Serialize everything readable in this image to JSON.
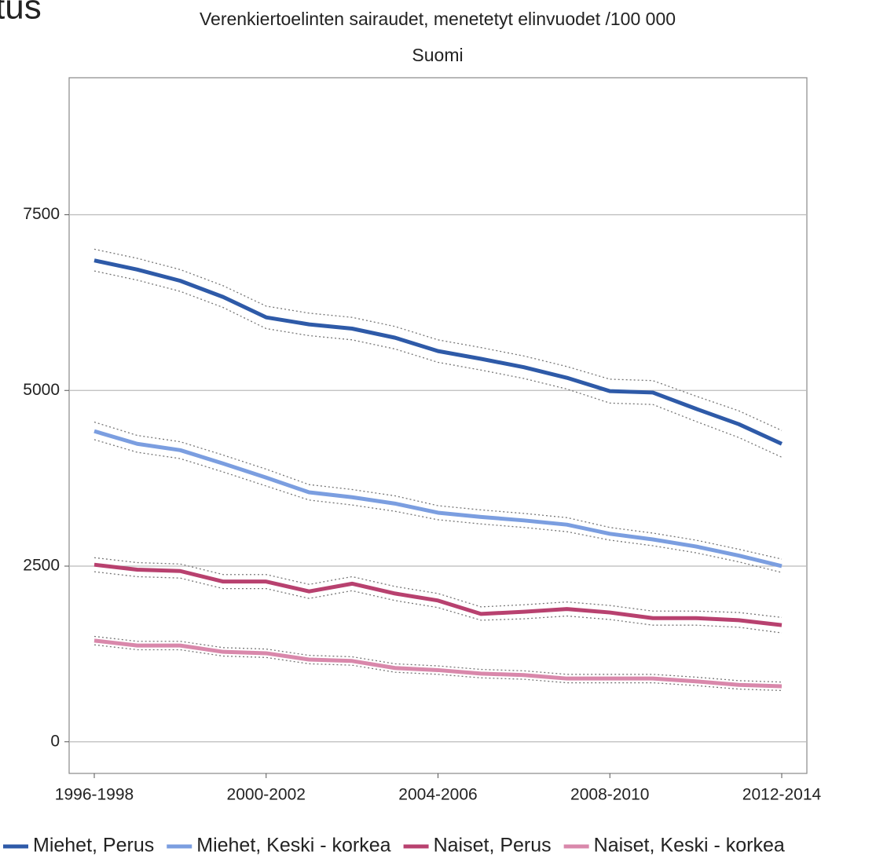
{
  "fragment_text": "tus",
  "chart_data": {
    "type": "line",
    "title": "Verenkiertoelinten sairaudet, menetetyt elinvuodet /100 000",
    "subtitle": "Suomi",
    "categories": [
      "1996-1998",
      null,
      null,
      null,
      "2000-2002",
      null,
      null,
      null,
      "2004-2006",
      null,
      null,
      null,
      "2008-2010",
      null,
      null,
      null,
      "2012-2014"
    ],
    "ylim": [
      -450,
      9450
    ],
    "yticks": [
      0,
      2500,
      5000,
      7500
    ],
    "grid": true,
    "legend": "bottom",
    "series": [
      {
        "name": "Miehet, Perus",
        "color": "#2e5aa8",
        "values": [
          6850,
          6720,
          6560,
          6330,
          6040,
          5940,
          5880,
          5750,
          5560,
          5450,
          5330,
          5180,
          4990,
          4970,
          4740,
          4520,
          4240
        ],
        "lower": [
          6700,
          6570,
          6410,
          6180,
          5880,
          5780,
          5720,
          5590,
          5400,
          5290,
          5170,
          5020,
          4820,
          4800,
          4560,
          4330,
          4050
        ],
        "upper": [
          7010,
          6880,
          6720,
          6490,
          6200,
          6100,
          6040,
          5910,
          5720,
          5610,
          5490,
          5340,
          5160,
          5140,
          4920,
          4710,
          4430
        ]
      },
      {
        "name": "Miehet, Keski - korkea",
        "color": "#7b9ee0",
        "values": [
          4420,
          4240,
          4150,
          3960,
          3760,
          3550,
          3480,
          3390,
          3260,
          3200,
          3150,
          3090,
          2960,
          2880,
          2780,
          2650,
          2500
        ],
        "lower": [
          4300,
          4120,
          4030,
          3840,
          3640,
          3440,
          3370,
          3280,
          3160,
          3100,
          3050,
          2990,
          2870,
          2790,
          2690,
          2560,
          2410
        ],
        "upper": [
          4550,
          4360,
          4270,
          4080,
          3880,
          3660,
          3590,
          3500,
          3360,
          3300,
          3250,
          3190,
          3050,
          2970,
          2870,
          2740,
          2600
        ]
      },
      {
        "name": "Naiset, Perus",
        "color": "#b8416f",
        "values": [
          2520,
          2450,
          2430,
          2280,
          2280,
          2140,
          2250,
          2110,
          2010,
          1820,
          1850,
          1890,
          1840,
          1760,
          1760,
          1730,
          1660
        ],
        "lower": [
          2420,
          2350,
          2330,
          2180,
          2180,
          2040,
          2150,
          2010,
          1910,
          1730,
          1750,
          1790,
          1740,
          1660,
          1660,
          1630,
          1550
        ],
        "upper": [
          2620,
          2550,
          2530,
          2380,
          2380,
          2240,
          2350,
          2210,
          2110,
          1920,
          1950,
          1990,
          1940,
          1860,
          1860,
          1840,
          1770
        ]
      },
      {
        "name": "Naiset, Keski - korkea",
        "color": "#d988ab",
        "values": [
          1440,
          1370,
          1370,
          1280,
          1260,
          1170,
          1150,
          1050,
          1020,
          970,
          950,
          900,
          900,
          900,
          860,
          810,
          790
        ],
        "lower": [
          1380,
          1310,
          1310,
          1220,
          1200,
          1110,
          1090,
          990,
          960,
          910,
          890,
          840,
          840,
          840,
          800,
          750,
          730
        ],
        "upper": [
          1500,
          1430,
          1430,
          1340,
          1320,
          1230,
          1210,
          1110,
          1080,
          1030,
          1010,
          960,
          960,
          960,
          920,
          870,
          850
        ]
      }
    ]
  }
}
